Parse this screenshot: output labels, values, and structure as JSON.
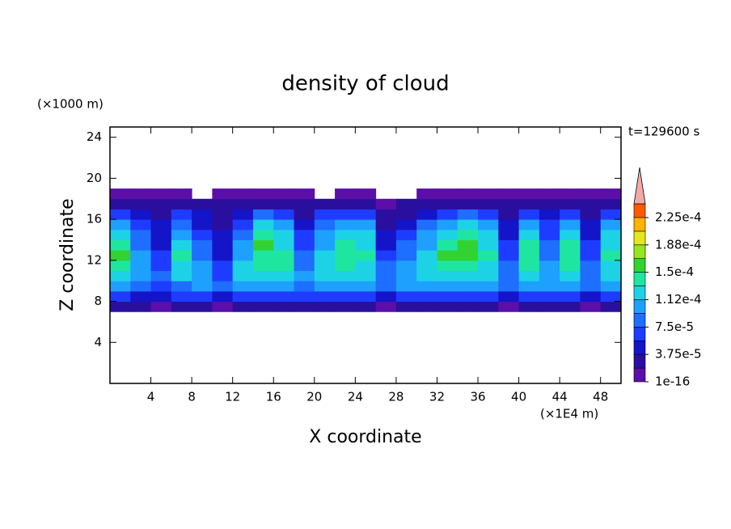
{
  "chart_data": {
    "type": "heatmap",
    "title": "density of cloud",
    "xlabel": "X coordinate",
    "ylabel": "Z coordinate",
    "x_unit": "(×1E4 m)",
    "y_unit": "(×1000 m)",
    "annotation": "t=129600 s",
    "xlim": [
      0,
      50
    ],
    "ylim": [
      0,
      25
    ],
    "xticks": [
      4,
      8,
      12,
      16,
      20,
      24,
      28,
      32,
      36,
      40,
      44,
      48
    ],
    "yticks": [
      4,
      8,
      12,
      16,
      20,
      24
    ],
    "x": [
      0,
      2,
      4,
      6,
      8,
      10,
      12,
      14,
      16,
      18,
      20,
      22,
      24,
      26,
      28,
      30,
      32,
      34,
      36,
      38,
      40,
      42,
      44,
      46,
      48,
      50
    ],
    "z": [
      7,
      8,
      9,
      10,
      11,
      12,
      13,
      14,
      15,
      16,
      17,
      18,
      19
    ],
    "values": [
      [
        2e-05,
        2e-05,
        1e-05,
        2e-05,
        2e-05,
        1e-05,
        2e-05,
        2e-05,
        2e-05,
        2e-05,
        2e-05,
        2e-05,
        2e-05,
        1e-05,
        2e-05,
        2e-05,
        2e-05,
        2e-05,
        2e-05,
        1e-05,
        2e-05,
        2e-05,
        2e-05,
        1e-05,
        2e-05
      ],
      [
        6e-05,
        5e-05,
        4e-05,
        6e-05,
        6e-05,
        5e-05,
        6e-05,
        6e-05,
        6e-05,
        6e-05,
        6e-05,
        6e-05,
        6e-05,
        5e-05,
        6e-05,
        6e-05,
        6e-05,
        6e-05,
        6e-05,
        5e-05,
        6e-05,
        6e-05,
        6e-05,
        5e-05,
        6e-05
      ],
      [
        0.0001,
        9e-05,
        7e-05,
        9e-05,
        0.0001,
        8e-05,
        0.0001,
        0.000105,
        0.0001,
        9e-05,
        0.0001,
        0.000105,
        0.0001,
        8e-05,
        0.0001,
        0.000105,
        0.0001,
        0.000105,
        0.0001,
        8e-05,
        0.0001,
        0.0001,
        0.0001,
        9e-05,
        0.0001
      ],
      [
        0.00013,
        0.00011,
        8e-05,
        0.00012,
        0.00011,
        7e-05,
        0.00012,
        0.00013,
        0.000125,
        0.0001,
        0.00012,
        0.00013,
        0.00012,
        9e-05,
        0.00011,
        0.000125,
        0.00013,
        0.00013,
        0.00012,
        9e-05,
        0.00013,
        0.00011,
        0.00013,
        9e-05,
        0.00012
      ],
      [
        0.00014,
        0.00011,
        7e-05,
        0.00013,
        0.0001,
        6e-05,
        0.00012,
        0.00014,
        0.000135,
        9e-05,
        0.00013,
        0.00014,
        0.00013,
        8e-05,
        0.0001,
        0.00013,
        0.00014,
        0.000145,
        0.00013,
        8e-05,
        0.00014,
        0.0001,
        0.000135,
        8e-05,
        0.00013
      ],
      [
        0.00015,
        0.0001,
        6e-05,
        0.00014,
        9e-05,
        5e-05,
        0.00011,
        0.000145,
        0.00014,
        8e-05,
        0.00012,
        0.000145,
        0.000135,
        7e-05,
        9e-05,
        0.00012,
        0.00015,
        0.00015,
        0.000135,
        7e-05,
        0.000145,
        9e-05,
        0.00014,
        7e-05,
        0.000135
      ],
      [
        0.000145,
        9e-05,
        5e-05,
        0.00013,
        8e-05,
        4e-05,
        0.0001,
        0.00015,
        0.00013,
        7e-05,
        0.00011,
        0.00014,
        0.00013,
        5e-05,
        8e-05,
        0.00011,
        0.000145,
        0.000155,
        0.00013,
        6e-05,
        0.00014,
        8e-05,
        0.000135,
        6e-05,
        0.00013
      ],
      [
        0.00013,
        8e-05,
        5e-05,
        0.00011,
        7e-05,
        4e-05,
        9e-05,
        0.00014,
        0.00012,
        6e-05,
        0.0001,
        0.00013,
        0.00012,
        4e-05,
        7e-05,
        0.0001,
        0.00013,
        0.00014,
        0.00012,
        5e-05,
        0.00012,
        7e-05,
        0.00012,
        5e-05,
        0.00012
      ],
      [
        0.00011,
        6e-05,
        4e-05,
        9e-05,
        5e-05,
        3e-05,
        7e-05,
        0.00012,
        0.0001,
        5e-05,
        8e-05,
        0.00011,
        0.0001,
        3e-05,
        5e-05,
        8e-05,
        0.00011,
        0.00012,
        0.0001,
        4e-05,
        0.0001,
        6e-05,
        0.0001,
        4e-05,
        0.0001
      ],
      [
        7e-05,
        4e-05,
        3e-05,
        6e-05,
        4e-05,
        2e-05,
        5e-05,
        8e-05,
        7e-05,
        3e-05,
        6e-05,
        7e-05,
        6e-05,
        2e-05,
        3e-05,
        5e-05,
        7e-05,
        8e-05,
        7e-05,
        3e-05,
        7e-05,
        4e-05,
        7e-05,
        3e-05,
        6e-05
      ],
      [
        3e-05,
        2e-05,
        2e-05,
        3e-05,
        2e-05,
        2e-05,
        3e-05,
        2e-05,
        2e-05,
        2e-05,
        3e-05,
        2e-05,
        2e-05,
        5e-06,
        2e-05,
        3e-05,
        2e-05,
        3e-05,
        2e-05,
        2e-05,
        3e-05,
        2e-05,
        3e-05,
        2e-05,
        3e-05
      ],
      [
        5e-06,
        5e-06,
        5e-06,
        5e-06,
        null,
        5e-06,
        5e-06,
        5e-06,
        5e-06,
        5e-06,
        null,
        5e-06,
        5e-06,
        null,
        null,
        5e-06,
        5e-06,
        5e-06,
        5e-06,
        5e-06,
        5e-06,
        5e-06,
        5e-06,
        5e-06,
        5e-06
      ]
    ],
    "levels": [
      1e-16,
      1.875e-05,
      3.75e-05,
      5.625e-05,
      7.5e-05,
      9.375e-05,
      0.0001125,
      0.00013125,
      0.00015,
      0.00016875,
      0.0001875,
      0.00020625,
      0.000225,
      0.00024375
    ],
    "colors": [
      "#5b0fa8",
      "#2a0f9e",
      "#1414c8",
      "#1e3cff",
      "#1e6eff",
      "#1ea0ff",
      "#1ed2e6",
      "#1ee6a0",
      "#32d232",
      "#96e61e",
      "#e6e61e",
      "#ffb400",
      "#ff5a00"
    ],
    "extend_color": "#f4a8a8",
    "colorbar_ticks": [
      {
        "value": 1e-16,
        "label": "1e-16"
      },
      {
        "value": 3.75e-05,
        "label": "3.75e-5"
      },
      {
        "value": 7.5e-05,
        "label": "7.5e-5"
      },
      {
        "value": 0.0001125,
        "label": "1.12e-4"
      },
      {
        "value": 0.00015,
        "label": "1.5e-4"
      },
      {
        "value": 0.0001875,
        "label": "1.88e-4"
      },
      {
        "value": 0.000225,
        "label": "2.25e-4"
      }
    ]
  }
}
